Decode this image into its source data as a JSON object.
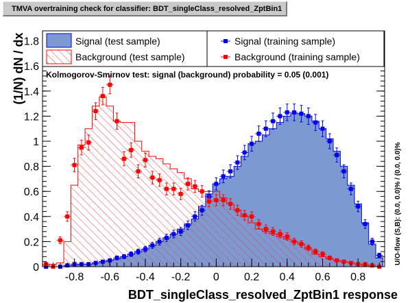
{
  "window": {
    "title": "TMVA overtraining check for classifier: BDT_singleClass_resolved_ZptBin1"
  },
  "legend": {
    "items": [
      {
        "label": "Signal (test sample)"
      },
      {
        "label": "Background (test sample)"
      },
      {
        "label": "Signal (training sample)"
      },
      {
        "label": "Background (training sample)"
      }
    ]
  },
  "ks_text": "Kolmogorov-Smirnov test: signal (background) probability =  0.05 (0.001)",
  "overflow_text": "U/O-flow (S,B): (0.0, 0.0)% / (0.0, 0.0)%",
  "colors": {
    "signal_fill": "#7d99d1",
    "signal_line": "#0000ee",
    "background_line": "#ff0000",
    "background_hatch": "#e84040",
    "title_bar": "#c9c9c9"
  },
  "chart_data": {
    "type": "bar",
    "xlabel": "BDT_singleClass_resolved_ZptBin1 response",
    "ylabel": "(1/N) dN / dx",
    "xlim": [
      -0.98,
      0.95
    ],
    "ylim": [
      0,
      1.88
    ],
    "bin_width": 0.04,
    "x_ticks": [
      "-0.8",
      "-0.6",
      "-0.4",
      "-0.2",
      "0",
      "0.2",
      "0.4",
      "0.6",
      "0.8"
    ],
    "y_ticks": [
      "0",
      "0.2",
      "0.4",
      "0.6",
      "0.8",
      "1",
      "1.2",
      "1.4",
      "1.6",
      "1.8"
    ],
    "bin_centers": [
      -0.96,
      -0.92,
      -0.88,
      -0.84,
      -0.8,
      -0.76,
      -0.72,
      -0.68,
      -0.64,
      -0.6,
      -0.56,
      -0.52,
      -0.48,
      -0.44,
      -0.4,
      -0.36,
      -0.32,
      -0.28,
      -0.24,
      -0.2,
      -0.16,
      -0.12,
      -0.08,
      -0.04,
      0.0,
      0.04,
      0.08,
      0.12,
      0.16,
      0.2,
      0.24,
      0.28,
      0.32,
      0.36,
      0.4,
      0.44,
      0.48,
      0.52,
      0.56,
      0.6,
      0.64,
      0.68,
      0.72,
      0.76,
      0.8,
      0.84,
      0.88,
      0.92
    ],
    "series": [
      {
        "name": "Signal (test sample)",
        "kind": "filled-hist",
        "values": [
          0.0,
          0.0,
          0.0,
          0.01,
          0.01,
          0.02,
          0.02,
          0.03,
          0.04,
          0.05,
          0.06,
          0.08,
          0.1,
          0.12,
          0.14,
          0.17,
          0.2,
          0.23,
          0.26,
          0.3,
          0.34,
          0.38,
          0.48,
          0.58,
          0.66,
          0.7,
          0.72,
          0.8,
          0.88,
          0.98,
          1.0,
          1.05,
          1.1,
          1.15,
          1.2,
          1.22,
          1.22,
          1.2,
          1.16,
          1.1,
          1.02,
          0.92,
          0.8,
          0.65,
          0.5,
          0.35,
          0.18,
          0.07
        ]
      },
      {
        "name": "Background (test sample)",
        "kind": "hatched-hist",
        "values": [
          0.01,
          0.02,
          0.03,
          0.2,
          0.65,
          0.97,
          1.1,
          1.28,
          1.35,
          1.28,
          1.16,
          1.15,
          1.15,
          1.0,
          0.92,
          0.88,
          0.86,
          0.82,
          0.78,
          0.75,
          0.7,
          0.62,
          0.6,
          0.6,
          0.6,
          0.55,
          0.5,
          0.45,
          0.4,
          0.35,
          0.3,
          0.28,
          0.26,
          0.24,
          0.22,
          0.2,
          0.18,
          0.14,
          0.1,
          0.08,
          0.06,
          0.05,
          0.04,
          0.03,
          0.02,
          0.01,
          0.0,
          0.0
        ]
      },
      {
        "name": "Signal (training sample)",
        "kind": "points",
        "values": [
          0.0,
          0.0,
          0.0,
          0.01,
          0.02,
          0.02,
          0.02,
          0.03,
          0.04,
          0.05,
          0.07,
          0.08,
          0.1,
          0.12,
          0.14,
          0.17,
          0.2,
          0.23,
          0.26,
          0.28,
          0.33,
          0.4,
          0.45,
          0.56,
          0.66,
          0.72,
          0.76,
          0.83,
          0.91,
          0.98,
          1.06,
          1.1,
          1.16,
          1.2,
          1.23,
          1.23,
          1.22,
          1.2,
          1.15,
          1.1,
          1.0,
          0.89,
          0.76,
          0.62,
          0.48,
          0.34,
          0.2,
          0.09
        ]
      },
      {
        "name": "Background (training sample)",
        "kind": "points",
        "values": [
          0.02,
          0.0,
          0.21,
          0.4,
          0.81,
          0.95,
          0.99,
          1.24,
          1.36,
          1.45,
          1.16,
          0.86,
          0.93,
          0.76,
          0.85,
          0.71,
          0.69,
          0.62,
          0.62,
          0.58,
          0.66,
          0.64,
          0.6,
          0.52,
          0.53,
          0.53,
          0.5,
          0.45,
          0.41,
          0.4,
          0.34,
          0.3,
          0.28,
          0.26,
          0.24,
          0.2,
          0.18,
          0.15,
          0.12,
          0.1,
          0.07,
          0.05,
          0.04,
          0.03,
          0.02,
          0.02,
          0.01,
          0.0
        ]
      }
    ]
  }
}
